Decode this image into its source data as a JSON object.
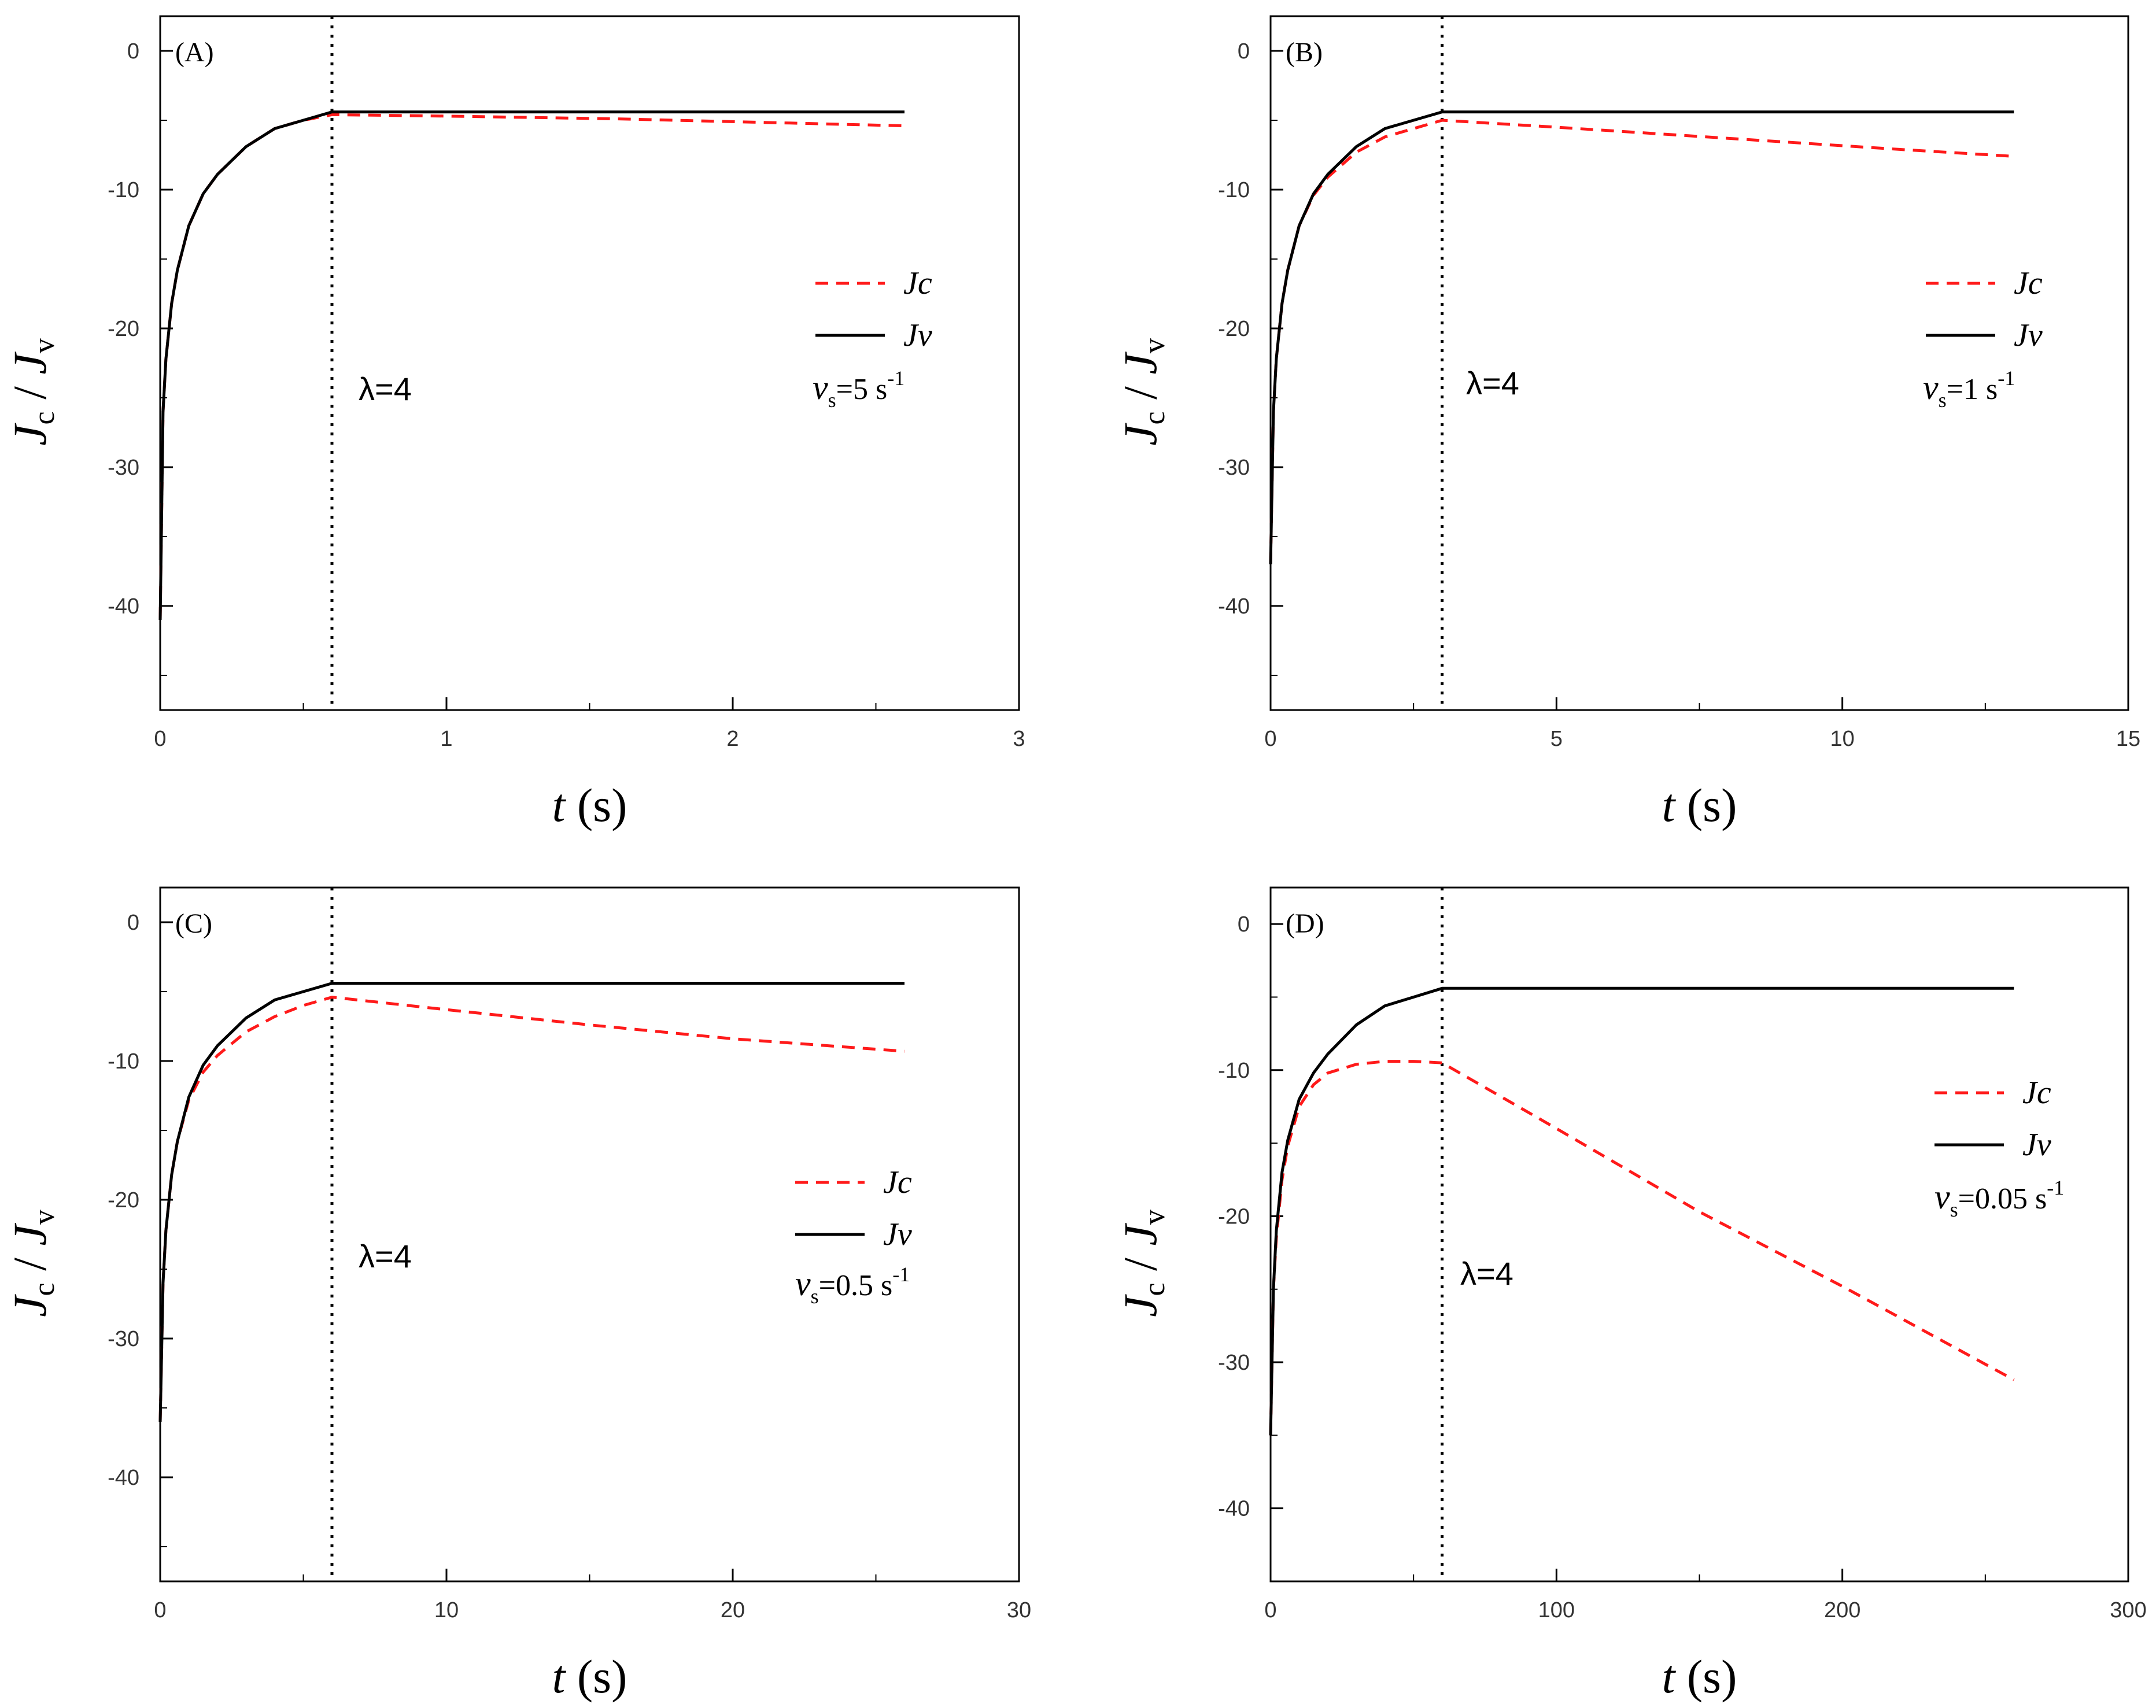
{
  "figure": {
    "y_title_symbol": "J",
    "y_title_sub_c": "c",
    "y_title_sep": " / ",
    "y_title_sub_v": "v",
    "x_title_symbol": "t",
    "x_title_unit": " (s)"
  },
  "colors": {
    "jc": "#ff1a1a",
    "jv": "#000000",
    "axis": "#000000",
    "marker_line": "#000000"
  },
  "chart_data": [
    {
      "type": "line",
      "panel_label": "(A)",
      "xlabel": "t (s)",
      "ylabel": "Jc / Jv",
      "xlim": [
        0,
        3
      ],
      "ylim": [
        -47.5,
        2.5
      ],
      "x_ticks": [
        0,
        1,
        2,
        3
      ],
      "x_tick_labels": [
        "0",
        "1",
        "2",
        "3"
      ],
      "y_ticks": [
        0,
        -10,
        -20,
        -30,
        -40
      ],
      "y_tick_labels": [
        "0",
        "-10",
        "-20",
        "-30",
        "-40"
      ],
      "vline_x": 0.6,
      "lambda_label": "λ=4",
      "vs_symbol": "v",
      "vs_sub": "s",
      "vs_value": "=5 s",
      "vs_sup": "-1",
      "legend": [
        "Jc",
        "Jv"
      ],
      "legend_placement": "right",
      "series": [
        {
          "name": "Jc",
          "style": "dashed",
          "x": [
            0,
            0.01,
            0.02,
            0.04,
            0.06,
            0.1,
            0.15,
            0.2,
            0.3,
            0.4,
            0.5,
            0.6,
            1.0,
            1.6,
            2.2,
            2.6
          ],
          "y": [
            -41,
            -26,
            -22.2,
            -18.2,
            -15.8,
            -12.6,
            -10.3,
            -8.9,
            -6.9,
            -5.6,
            -5.0,
            -4.6,
            -4.7,
            -4.9,
            -5.2,
            -5.4
          ]
        },
        {
          "name": "Jv",
          "style": "solid",
          "x": [
            0,
            0.01,
            0.02,
            0.04,
            0.06,
            0.1,
            0.15,
            0.2,
            0.3,
            0.4,
            0.5,
            0.6,
            1.0,
            1.6,
            2.2,
            2.6
          ],
          "y": [
            -41,
            -26,
            -22.2,
            -18.2,
            -15.8,
            -12.6,
            -10.3,
            -8.9,
            -6.9,
            -5.6,
            -5.0,
            -4.4,
            -4.4,
            -4.4,
            -4.4,
            -4.4
          ]
        }
      ]
    },
    {
      "type": "line",
      "panel_label": "(B)",
      "xlabel": "t (s)",
      "ylabel": "Jc / Jv",
      "xlim": [
        0,
        15
      ],
      "ylim": [
        -47.5,
        2.5
      ],
      "x_ticks": [
        0,
        5,
        10,
        15
      ],
      "x_tick_labels": [
        "0",
        "5",
        "10",
        "15"
      ],
      "y_ticks": [
        0,
        -10,
        -20,
        -30,
        -40
      ],
      "y_tick_labels": [
        "0",
        "-10",
        "-20",
        "-30",
        "-40"
      ],
      "vline_x": 3,
      "lambda_label": "λ=4",
      "vs_symbol": "v",
      "vs_sub": "s",
      "vs_value": "=1 s",
      "vs_sup": "-1",
      "legend": [
        "Jc",
        "Jv"
      ],
      "legend_placement": "right",
      "series": [
        {
          "name": "Jc",
          "style": "dashed",
          "x": [
            0,
            0.05,
            0.1,
            0.2,
            0.3,
            0.5,
            0.75,
            1.0,
            1.5,
            2.0,
            2.5,
            3.0,
            5.0,
            8.0,
            11.0,
            13.0
          ],
          "y": [
            -37,
            -26,
            -22.2,
            -18.2,
            -15.8,
            -12.6,
            -10.4,
            -9.1,
            -7.3,
            -6.2,
            -5.6,
            -5.0,
            -5.5,
            -6.3,
            -7.1,
            -7.6
          ]
        },
        {
          "name": "Jv",
          "style": "solid",
          "x": [
            0,
            0.05,
            0.1,
            0.2,
            0.3,
            0.5,
            0.75,
            1.0,
            1.5,
            2.0,
            2.5,
            3.0,
            5.0,
            8.0,
            11.0,
            13.0
          ],
          "y": [
            -37,
            -26,
            -22.2,
            -18.2,
            -15.8,
            -12.6,
            -10.3,
            -8.9,
            -6.9,
            -5.6,
            -5.0,
            -4.4,
            -4.4,
            -4.4,
            -4.4,
            -4.4
          ]
        }
      ]
    },
    {
      "type": "line",
      "panel_label": "(C)",
      "xlabel": "t (s)",
      "ylabel": "Jc / Jv",
      "xlim": [
        0,
        30
      ],
      "ylim": [
        -47.5,
        2.5
      ],
      "x_ticks": [
        0,
        10,
        20,
        30
      ],
      "x_tick_labels": [
        "0",
        "10",
        "20",
        "30"
      ],
      "y_ticks": [
        0,
        -10,
        -20,
        -30,
        -40
      ],
      "y_tick_labels": [
        "0",
        "-10",
        "-20",
        "-30",
        "-40"
      ],
      "vline_x": 6,
      "lambda_label": "λ=4",
      "vs_symbol": "v",
      "vs_sub": "s",
      "vs_value": "=0.5 s",
      "vs_sup": "-1",
      "legend": [
        "Jc",
        "Jv"
      ],
      "legend_placement": "right",
      "series": [
        {
          "name": "Jc",
          "style": "dashed",
          "x": [
            0,
            0.1,
            0.2,
            0.4,
            0.6,
            1.0,
            1.5,
            2.0,
            3.0,
            4.0,
            5.0,
            6.0,
            10.0,
            15.0,
            20.0,
            26.0
          ],
          "y": [
            -36,
            -26,
            -22.2,
            -18.2,
            -15.8,
            -12.8,
            -10.8,
            -9.6,
            -7.9,
            -6.8,
            -6.0,
            -5.4,
            -6.3,
            -7.4,
            -8.4,
            -9.3
          ]
        },
        {
          "name": "Jv",
          "style": "solid",
          "x": [
            0,
            0.1,
            0.2,
            0.4,
            0.6,
            1.0,
            1.5,
            2.0,
            3.0,
            4.0,
            5.0,
            6.0,
            10.0,
            15.0,
            20.0,
            26.0
          ],
          "y": [
            -36,
            -26,
            -22.2,
            -18.2,
            -15.8,
            -12.6,
            -10.3,
            -8.9,
            -6.9,
            -5.6,
            -5.0,
            -4.4,
            -4.4,
            -4.4,
            -4.4,
            -4.4
          ]
        }
      ]
    },
    {
      "type": "line",
      "panel_label": "(D)",
      "xlabel": "t (s)",
      "ylabel": "Jc / Jv",
      "xlim": [
        0,
        300
      ],
      "ylim": [
        -45,
        2.5
      ],
      "x_ticks": [
        0,
        100,
        200,
        300
      ],
      "x_tick_labels": [
        "0",
        "100",
        "200",
        "300"
      ],
      "y_ticks": [
        0,
        -10,
        -20,
        -30,
        -40
      ],
      "y_tick_labels": [
        "0",
        "-10",
        "-20",
        "-30",
        "-40"
      ],
      "vline_x": 60,
      "lambda_label": "λ=4",
      "vs_symbol": "v",
      "vs_sub": "s",
      "vs_value": "=0.05 s",
      "vs_sup": "-1",
      "legend": [
        "Jc",
        "Jv"
      ],
      "legend_placement": "right",
      "series": [
        {
          "name": "Jc",
          "style": "dashed",
          "x": [
            0,
            1,
            2,
            4,
            6,
            10,
            15,
            20,
            30,
            40,
            50,
            60,
            100,
            150,
            200,
            260
          ],
          "y": [
            -35,
            -25,
            -21.5,
            -17.5,
            -15.2,
            -12.5,
            -11.0,
            -10.2,
            -9.6,
            -9.4,
            -9.4,
            -9.5,
            -14.0,
            -19.7,
            -24.8,
            -31.2
          ]
        },
        {
          "name": "Jv",
          "style": "solid",
          "x": [
            0,
            1,
            2,
            4,
            6,
            10,
            15,
            20,
            30,
            40,
            50,
            60,
            100,
            150,
            200,
            260
          ],
          "y": [
            -35,
            -25,
            -21.0,
            -17.0,
            -14.8,
            -12.0,
            -10.2,
            -8.9,
            -6.9,
            -5.6,
            -5.0,
            -4.4,
            -4.4,
            -4.4,
            -4.4,
            -4.4
          ]
        }
      ]
    }
  ]
}
